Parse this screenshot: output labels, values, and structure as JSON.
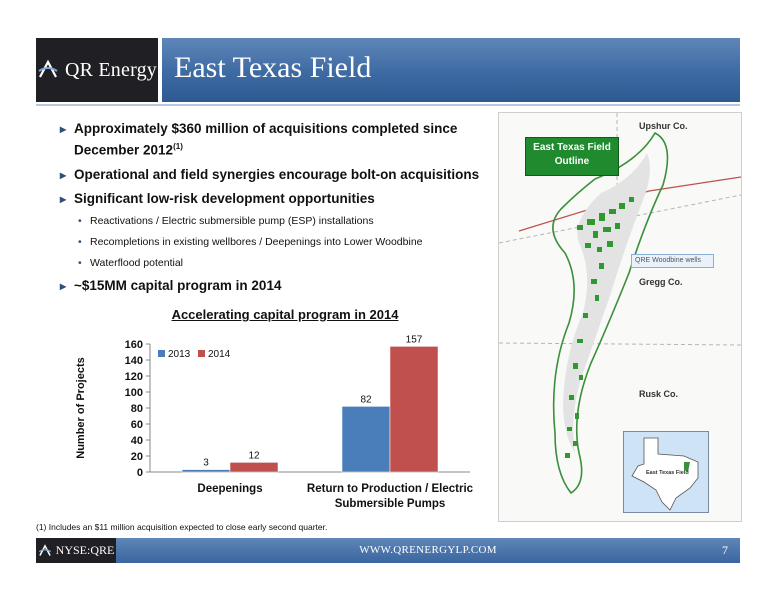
{
  "header": {
    "logo_text": "QR Energy",
    "title": "East Texas Field"
  },
  "bullets": {
    "b1": "Approximately $360 million of acquisitions completed  since December 2012",
    "b1_sup": "(1)",
    "b2": "Operational and field synergies encourage bolt-on acquisitions",
    "b3": "Significant low-risk development opportunities",
    "sub1": "Reactivations / Electric submersible pump (ESP) installations",
    "sub2": "Recompletions in existing wellbores / Deepenings into Lower Woodbine",
    "sub3": "Waterflood potential",
    "b4": "~$15MM capital program in 2014"
  },
  "chart_data": {
    "type": "bar",
    "title": "Accelerating capital program in 2014",
    "ylabel": "Number of Projects",
    "xlabel": "",
    "categories": [
      "Deepenings",
      "Return to Production / Electric Submersible Pumps"
    ],
    "series": [
      {
        "name": "2013",
        "values": [
          3,
          82
        ],
        "color": "#4a7ebb"
      },
      {
        "name": "2014",
        "values": [
          12,
          157
        ],
        "color": "#c0504d"
      }
    ],
    "ylim": [
      0,
      160
    ],
    "yticks": [
      0,
      20,
      40,
      60,
      80,
      100,
      120,
      140,
      160
    ],
    "legend": "top-left",
    "grid": false
  },
  "footnote": "(1) Includes an $11 million acquisition expected to close early second quarter.",
  "map": {
    "legend": "East Texas Field Outline",
    "county_upshur": "Upshur Co.",
    "county_gregg": "Gregg Co.",
    "county_rusk": "Rusk Co.",
    "wells_label": "QRE Woodbine wells",
    "inset_label": "East Texas Field"
  },
  "footer": {
    "logo_text": "NYSE:QRE",
    "url": "WWW.QRENERGYLP.COM",
    "page": "7"
  }
}
